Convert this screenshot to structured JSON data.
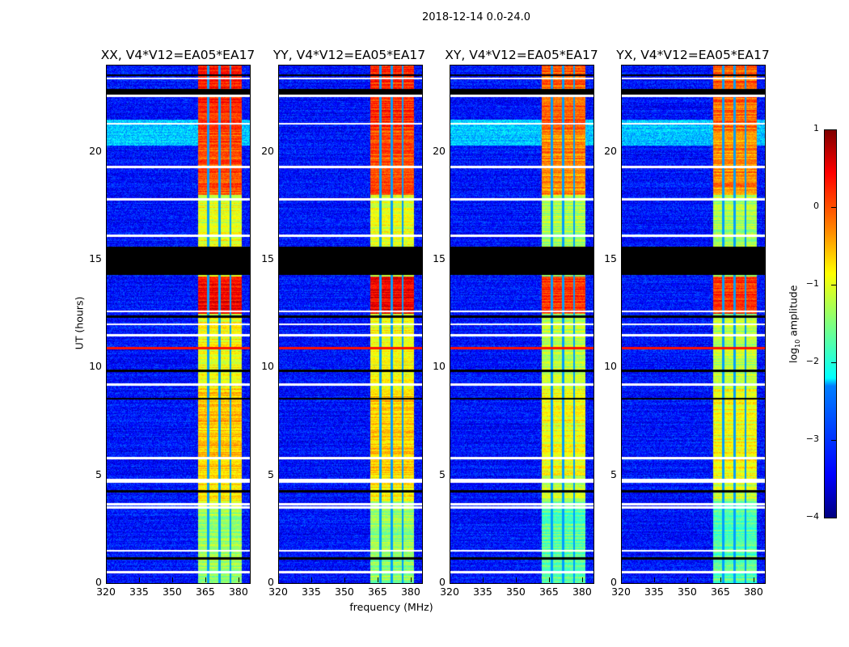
{
  "suptitle": "2018-12-14 0.0-24.0",
  "chart_data": {
    "type": "heatmap",
    "xlabel": "frequency (MHz)",
    "ylabel": "UT (hours)",
    "xlim": [
      320,
      384.8
    ],
    "ylim": [
      0,
      24
    ],
    "xticks": [
      "320",
      "335",
      "350",
      "365",
      "380"
    ],
    "yticks": [
      "0",
      "5",
      "10",
      "15",
      "20"
    ],
    "panels": [
      {
        "title": "XX, V4*V12=EA05*EA17"
      },
      {
        "title": "YY, V4*V12=EA05*EA17"
      },
      {
        "title": "XY, V4*V12=EA05*EA17"
      },
      {
        "title": "YX, V4*V12=EA05*EA17"
      }
    ],
    "colorbar": {
      "label": "log",
      "label_sub": "10",
      "label_tail": " amplitude",
      "range": [
        -4,
        1
      ],
      "ticks": [
        "−4",
        "−3",
        "−2",
        "−1",
        "0",
        "1"
      ],
      "colormap": "jet"
    },
    "background_level": -3.3,
    "bright_band_mhz": [
      361.5,
      381
    ],
    "bright_band_gaps_mhz": [
      366,
      371,
      376
    ],
    "bright_band_levels": [
      {
        "hours": [
          0,
          3.5
        ],
        "level": -1.4
      },
      {
        "hours": [
          3.8,
          5
        ],
        "level": -0.8
      },
      {
        "hours": [
          5,
          9
        ],
        "level": -0.6
      },
      {
        "hours": [
          9,
          12.3
        ],
        "level": -0.9
      },
      {
        "hours": [
          12.5,
          14.2
        ],
        "level": 0.4
      },
      {
        "hours": [
          15.5,
          18
        ],
        "level": -1.0
      },
      {
        "hours": [
          18,
          21
        ],
        "level": 0.0
      },
      {
        "hours": [
          21,
          24
        ],
        "level": 0.2
      }
    ],
    "rfi_line_hours": 10.9,
    "flagged_hours": [
      0.5,
      1.5,
      3.5,
      3.65,
      4.7,
      4.8,
      5.8,
      9.2,
      11.5,
      12.0,
      12.6,
      16.1,
      17.8,
      19.3,
      21.3,
      22.6,
      23.4
    ],
    "dropout_hours": [
      [
        14.3,
        15.6
      ],
      [
        22.6,
        22.9
      ],
      [
        23.5,
        23.6
      ],
      [
        12.3,
        12.4
      ],
      [
        9.8,
        9.9
      ],
      [
        8.5,
        8.6
      ],
      [
        4.2,
        4.3
      ],
      [
        1.1,
        1.2
      ]
    ]
  }
}
